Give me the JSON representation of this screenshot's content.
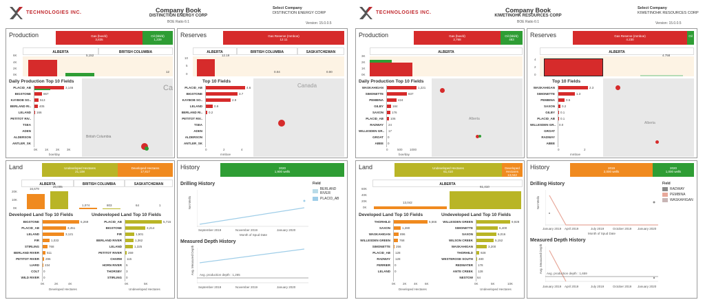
{
  "left": {
    "header": {
      "brand": "TECHNOLOGIES INC.",
      "title": "Company Book",
      "company": "DISTINCTION ENERGY CORP",
      "boe_ratio": "BOE Ratio 6:1",
      "select_label": "Select Company",
      "select_value": "DISTINCTION ENERGY CORP",
      "version": "Version: 15.0.0.5"
    },
    "production": {
      "title": "Production",
      "summary": [
        {
          "label": "Gas (boe/d)",
          "value": "3,835"
        },
        {
          "label": "Oil (bbl/d)",
          "value": "1,339"
        }
      ],
      "columns": [
        "ALBERTA",
        "BRITISH COLUMBIA"
      ],
      "yaxis": [
        "6K",
        "4K",
        "2K",
        "0K"
      ],
      "ylabel": "boe/day",
      "bar_labels": [
        "5,152",
        "12"
      ],
      "top10_title": "Daily Production Top 10 Fields",
      "fields": [
        {
          "name": "PLACID_AB",
          "value": "3,146"
        },
        {
          "name": "BIGSTONE",
          "value": "867"
        },
        {
          "name": "KAYBOB SO..",
          "value": "513"
        },
        {
          "name": "BERLAND RI..",
          "value": "405"
        },
        {
          "name": "LELAND",
          "value": "166"
        },
        {
          "name": "PETITOT RIV..",
          "value": ""
        },
        {
          "name": "TSEA",
          "value": ""
        },
        {
          "name": "ADEN",
          "value": ""
        },
        {
          "name": "ALDERSON",
          "value": ""
        },
        {
          "name": "ANTLER_SK",
          "value": ""
        }
      ],
      "xaxis": [
        "0K",
        "1K",
        "2K",
        "3K"
      ],
      "xlabel": "boe/day",
      "map_labels": [
        "Ca",
        "British Columbia"
      ]
    },
    "reserves": {
      "title": "Reserves",
      "summary": [
        {
          "label": "Gas Reserve (mmboe)",
          "value": "12.11"
        }
      ],
      "columns": [
        "ALBERTA",
        "BRITISH COLUMBIA",
        "SASKATCHEWAN"
      ],
      "yaxis": [
        "10",
        "5",
        "0"
      ],
      "ylabel": "mmboe",
      "bar_labels": [
        "12.19",
        "0.04",
        "0.00"
      ],
      "top10_title": "Top 10 Fields",
      "fields": [
        {
          "name": "PLACID_AB",
          "value": "4.6"
        },
        {
          "name": "BIGSTONE",
          "value": "3.7"
        },
        {
          "name": "KAYBOB SO..",
          "value": "2.9"
        },
        {
          "name": "LELAND",
          "value": "0.9"
        },
        {
          "name": "BERLAND RI..",
          "value": "0.2"
        },
        {
          "name": "PETITOT RIV..",
          "value": ""
        },
        {
          "name": "TSEA",
          "value": ""
        },
        {
          "name": "ADEN",
          "value": ""
        },
        {
          "name": "ALDERSON",
          "value": ""
        },
        {
          "name": "ANTLER_SK",
          "value": ""
        }
      ],
      "xaxis": [
        "0",
        "2",
        "4"
      ],
      "xlabel": "mmboe",
      "map_labels": [
        "Canada"
      ]
    },
    "land": {
      "title": "Land",
      "summary": [
        {
          "label": "Undeveloped Hectares",
          "value": "21,108"
        },
        {
          "label": "Developed Hectares",
          "value": "17,817"
        }
      ],
      "columns": [
        "ALBERTA",
        "BRITISH COLUMBIA",
        "SASKATCHEWAN"
      ],
      "yaxis": [
        "20K",
        "10K",
        "0K"
      ],
      "ylabel": "Land (ha)",
      "bar_labels": [
        "16,679",
        "20,005",
        "1,074",
        "803",
        "64",
        "1"
      ],
      "dev_title": "Developed Land Top 10 Fields",
      "dev_fields": [
        {
          "name": "BIGSTONE",
          "value": "5,269"
        },
        {
          "name": "PLACID_AB",
          "value": "3,451"
        },
        {
          "name": "LELAND",
          "value": "3,121"
        },
        {
          "name": "FIR",
          "value": "1,033"
        },
        {
          "name": "STIRLING",
          "value": "768"
        },
        {
          "name": "BERLAND RIVER",
          "value": "511"
        },
        {
          "name": "PETITOT RIVER",
          "value": "296"
        },
        {
          "name": "LIARD",
          "value": "234"
        },
        {
          "name": "COLT",
          "value": "0"
        },
        {
          "name": "WILD RIVER",
          "value": "0"
        }
      ],
      "dev_xaxis": [
        "0K",
        "2K",
        "4K"
      ],
      "dev_xlabel": "Developed Hectares",
      "und_title": "Undeveloped Land Top 10 Fields",
      "und_fields": [
        {
          "name": "PLACID_AB",
          "value": "5,715"
        },
        {
          "name": "BIGSTONE",
          "value": "3,214"
        },
        {
          "name": "FIR",
          "value": "1,501"
        },
        {
          "name": "BERLAND RIVER",
          "value": "1,362"
        },
        {
          "name": "LELAND",
          "value": "1,325"
        },
        {
          "name": "PETITOT RIVER",
          "value": "269"
        },
        {
          "name": "CHARM",
          "value": "115"
        },
        {
          "name": "HORN RIVER",
          "value": "5"
        },
        {
          "name": "THORSBY",
          "value": "3"
        },
        {
          "name": "STIRLING",
          "value": "0"
        }
      ],
      "und_xaxis": [
        "0K",
        "5K"
      ],
      "und_xlabel": "Undeveloped Hectares"
    },
    "history": {
      "title": "History",
      "summary": [
        {
          "label": "2020",
          "value": "1,900 wells"
        }
      ],
      "drill_title": "Drilling History",
      "drill_ylabel": "Net Wells",
      "drill_xaxis": [
        "September 2019",
        "November 2019",
        "January 2020"
      ],
      "drill_xlabel": "Month of Spud Date",
      "legend_title": "Field",
      "legend": [
        {
          "name": "BERLAND RIVER",
          "color": "#b9dbe8"
        },
        {
          "name": "PLACID_AB",
          "color": "#9ecde8"
        }
      ],
      "depth_title": "Measured Depth History",
      "depth_ylabel": "Avg. Measured Depth",
      "depth_note": "Avg. production depth : 1,265",
      "depth_xaxis": [
        "September 2019",
        "November 2019",
        "January 2020"
      ]
    }
  },
  "right": {
    "header": {
      "brand": "TECHNOLOGIES INC.",
      "title": "Company Book",
      "company": "KIWETINOHK RESOURCES CORP",
      "boe_ratio": "BOE Ratio 6:1",
      "select_label": "Select Company",
      "select_value": "KIWETINOHK RESOURCES CORP",
      "version": "Version: 15.0.0.5"
    },
    "production": {
      "title": "Production",
      "summary": [
        {
          "label": "Gas (boe/d)",
          "value": "2,768"
        },
        {
          "label": "Oil (bbl/d)",
          "value": "483"
        }
      ],
      "columns": [
        "ALBERTA"
      ],
      "yaxis": [
        "3K",
        "2K",
        "1K",
        "0K"
      ],
      "ylabel": "boe/day",
      "bar_labels": [],
      "top10_title": "Daily Production Top 10 Fields",
      "fields": [
        {
          "name": "WASKAHIGAN",
          "value": "1,221"
        },
        {
          "name": "SIMONETTE",
          "value": "837"
        },
        {
          "name": "PEMBINA",
          "value": "424"
        },
        {
          "name": "GILBY",
          "value": "184"
        },
        {
          "name": "SAXON",
          "value": "176"
        },
        {
          "name": "PLACID_AB",
          "value": "106"
        },
        {
          "name": "RADWAY",
          "value": "24"
        },
        {
          "name": "WILLESDEN GR..",
          "value": "17"
        },
        {
          "name": "GROAT",
          "value": "0"
        },
        {
          "name": "ABEE",
          "value": "0"
        }
      ],
      "xaxis": [
        "0",
        "500",
        "1000"
      ],
      "xlabel": "boe/day",
      "map_labels": [
        "Alberta"
      ]
    },
    "reserves": {
      "title": "Reserves",
      "summary": [
        {
          "label": "Gas Reserve (mmboe)",
          "value": "4.230"
        },
        {
          "label": "Oil",
          "value": ""
        }
      ],
      "columns": [
        "ALBERTA"
      ],
      "yaxis": [
        "4",
        "2",
        "0"
      ],
      "ylabel": "mmboe",
      "bar_labels": [
        "4.758"
      ],
      "top10_title": "Top 10 Fields",
      "fields": [
        {
          "name": "WASKAHIGAN",
          "value": "2.3"
        },
        {
          "name": "SIMONETTE",
          "value": "1.3"
        },
        {
          "name": "PEMBINA",
          "value": "0.5"
        },
        {
          "name": "SAXON",
          "value": "0.2"
        },
        {
          "name": "GILBY",
          "value": "0.1"
        },
        {
          "name": "PLACID_AB",
          "value": "0.1"
        },
        {
          "name": "WILLESDEN GR..",
          "value": "0.0"
        },
        {
          "name": "GROAT",
          "value": ""
        },
        {
          "name": "RADWAY",
          "value": ""
        },
        {
          "name": "ABEE",
          "value": ""
        }
      ],
      "xaxis": [
        "0",
        "2"
      ],
      "xlabel": "mmboe",
      "map_labels": [
        "Alberta"
      ]
    },
    "land": {
      "title": "Land",
      "summary": [
        {
          "label": "Undeveloped Hectares",
          "value": "61,410"
        },
        {
          "label": "Developed Hectares",
          "value": "13,042"
        }
      ],
      "columns": [
        "ALBERTA"
      ],
      "yaxis": [
        "60K",
        "40K",
        "20K",
        "0K"
      ],
      "ylabel": "Land (ha)",
      "bar_labels": [
        "13,042",
        "61,410"
      ],
      "dev_title": "Developed Land Top 10 Fields",
      "dev_fields": [
        {
          "name": "THORHILD",
          "value": "5,666"
        },
        {
          "name": "SAXON",
          "value": "1,280"
        },
        {
          "name": "WASKAHIGAN",
          "value": "896"
        },
        {
          "name": "WILLESDEN GREEN",
          "value": "768"
        },
        {
          "name": "SIMONETTE",
          "value": "256"
        },
        {
          "name": "PLACID_AB",
          "value": "128"
        },
        {
          "name": "RADWAY",
          "value": "128"
        },
        {
          "name": "FERRIER",
          "value": "0"
        },
        {
          "name": "LELAND",
          "value": "0"
        },
        {
          "name": "",
          "value": ""
        }
      ],
      "dev_xaxis": [
        "0K",
        "2K",
        "4K",
        "6K"
      ],
      "dev_xlabel": "Developed Hectares",
      "und_title": "Undeveloped Land Top 10 Fields",
      "und_fields": [
        {
          "name": "WILLESDEN GREEN",
          "value": "9,928"
        },
        {
          "name": "SIMONETTE",
          "value": "6,400"
        },
        {
          "name": "SAXON",
          "value": "6,016"
        },
        {
          "name": "WILSON CREEK",
          "value": "5,152"
        },
        {
          "name": "WASKAHIGAN",
          "value": "3,200"
        },
        {
          "name": "THORHILD",
          "value": "928"
        },
        {
          "name": "WESTEROSE SOUTH",
          "value": "480"
        },
        {
          "name": "REDWATER",
          "value": "178"
        },
        {
          "name": "ANTE CREEK",
          "value": "128"
        },
        {
          "name": "NESTOW",
          "value": "64"
        }
      ],
      "und_xaxis": [
        "0K",
        "5K",
        "10K"
      ],
      "und_xlabel": "Undeveloped Hectares"
    },
    "history": {
      "title": "History",
      "summary": [
        {
          "label": "2019",
          "value": "2,000 wells"
        },
        {
          "label": "2020",
          "value": "1,000 wells"
        }
      ],
      "drill_title": "Drilling History",
      "drill_ylabel": "Net Wells",
      "drill_xaxis": [
        "January 2019",
        "April 2019",
        "July 2019",
        "October 2019",
        "January 2020"
      ],
      "drill_xlabel": "Month of Spud Date",
      "legend_title": "Field",
      "legend": [
        {
          "name": "RADWAY",
          "color": "#8a8a8a"
        },
        {
          "name": "PEMBINA",
          "color": "#e8a89a"
        },
        {
          "name": "WASKAHIGAN",
          "color": "#c8b5b5"
        }
      ],
      "depth_title": "Measured Depth History",
      "depth_ylabel": "Avg. Measured Depth",
      "depth_note": "Avg. production depth : 1,659",
      "depth_xaxis": [
        "January 2019",
        "April 2019",
        "July 2019",
        "October 2019",
        "January 2020"
      ]
    }
  }
}
